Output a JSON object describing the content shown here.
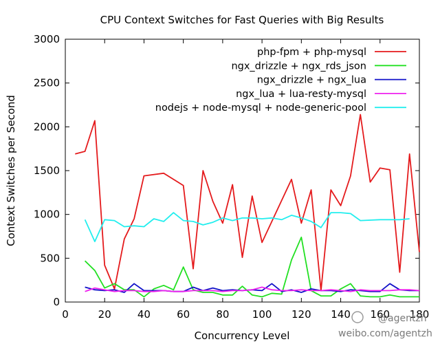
{
  "chart_data": {
    "type": "line",
    "title": "CPU Context Switches for Fast Queries with Big Results",
    "xlabel": "Concurrency Level",
    "ylabel": "Context Switches per Second",
    "xlim": [
      0,
      180
    ],
    "ylim": [
      0,
      3000
    ],
    "xticks": [
      0,
      20,
      40,
      60,
      80,
      100,
      120,
      140,
      160,
      180
    ],
    "yticks": [
      0,
      500,
      1000,
      1500,
      2000,
      2500,
      3000
    ],
    "xtick_labels": [
      "0",
      "20",
      "40",
      "60",
      "80",
      "100",
      "120",
      "140",
      "160",
      "180"
    ],
    "ytick_labels": [
      "0",
      "500",
      "1000",
      "1500",
      "2000",
      "2500",
      "3000"
    ],
    "grid": false,
    "legend_position": "top-right",
    "series": [
      {
        "name": "php-fpm + php-mysql",
        "color": "#e41a1c",
        "x": [
          5,
          10,
          15,
          20,
          25,
          30,
          35,
          40,
          50,
          60,
          65,
          70,
          75,
          80,
          85,
          90,
          95,
          100,
          115,
          120,
          125,
          130,
          135,
          140,
          145,
          150,
          155,
          160,
          165,
          170,
          175,
          180
        ],
        "y": [
          1690,
          1720,
          2070,
          420,
          150,
          720,
          950,
          1440,
          1470,
          1330,
          380,
          1500,
          1150,
          900,
          1340,
          510,
          1210,
          680,
          1400,
          900,
          1280,
          130,
          1280,
          1100,
          1440,
          2140,
          1370,
          1530,
          1510,
          340,
          1690,
          570
        ]
      },
      {
        "name": "ngx_drizzle + ngx_rds_json",
        "color": "#22e022",
        "x": [
          10,
          15,
          20,
          25,
          30,
          35,
          40,
          45,
          50,
          55,
          60,
          65,
          70,
          75,
          80,
          85,
          90,
          95,
          100,
          105,
          110,
          115,
          120,
          125,
          130,
          135,
          140,
          145,
          150,
          155,
          160,
          165,
          170,
          175,
          180
        ],
        "y": [
          470,
          360,
          160,
          210,
          140,
          140,
          60,
          150,
          190,
          140,
          400,
          140,
          110,
          110,
          80,
          80,
          180,
          80,
          60,
          100,
          90,
          480,
          740,
          130,
          70,
          70,
          150,
          210,
          70,
          60,
          60,
          80,
          60,
          60,
          60
        ]
      },
      {
        "name": "ngx_drizzle + ngx_lua",
        "color": "#1010c8",
        "x": [
          10,
          15,
          20,
          25,
          30,
          35,
          40,
          45,
          50,
          55,
          60,
          65,
          70,
          75,
          80,
          85,
          90,
          95,
          100,
          105,
          110,
          115,
          120,
          125,
          130,
          135,
          140,
          145,
          150,
          155,
          160,
          165,
          170,
          175,
          180
        ],
        "y": [
          170,
          140,
          130,
          140,
          110,
          210,
          130,
          130,
          130,
          120,
          120,
          170,
          130,
          160,
          130,
          140,
          130,
          140,
          130,
          210,
          120,
          140,
          110,
          150,
          130,
          130,
          120,
          140,
          130,
          120,
          120,
          210,
          140,
          130,
          130
        ]
      },
      {
        "name": "ngx_lua + lua-resty-mysql",
        "color": "#ee22ee",
        "x": [
          10,
          15,
          20,
          25,
          30,
          35,
          40,
          45,
          50,
          55,
          60,
          65,
          70,
          75,
          80,
          85,
          90,
          95,
          100,
          105,
          110,
          115,
          120,
          125,
          130,
          135,
          140,
          145,
          150,
          155,
          160,
          165,
          170,
          175,
          180
        ],
        "y": [
          120,
          160,
          140,
          120,
          130,
          130,
          120,
          120,
          130,
          120,
          120,
          130,
          130,
          130,
          120,
          130,
          130,
          140,
          170,
          140,
          130,
          130,
          140,
          130,
          130,
          140,
          130,
          120,
          140,
          130,
          130,
          130,
          140,
          140,
          130
        ]
      },
      {
        "name": "nodejs + node-mysql + node-generic-pool",
        "color": "#22eeee",
        "x": [
          10,
          15,
          20,
          25,
          30,
          35,
          40,
          45,
          50,
          55,
          60,
          65,
          70,
          75,
          80,
          85,
          90,
          95,
          100,
          105,
          110,
          115,
          120,
          125,
          130,
          135,
          140,
          145,
          150,
          160,
          170,
          175
        ],
        "y": [
          940,
          690,
          940,
          930,
          860,
          870,
          860,
          950,
          920,
          1020,
          930,
          920,
          880,
          910,
          960,
          930,
          960,
          960,
          950,
          960,
          940,
          990,
          960,
          920,
          850,
          1020,
          1020,
          1010,
          930,
          940,
          940,
          950
        ]
      }
    ]
  },
  "watermark": {
    "handle": "@agentzh",
    "url": "weibo.com/agentzh"
  }
}
